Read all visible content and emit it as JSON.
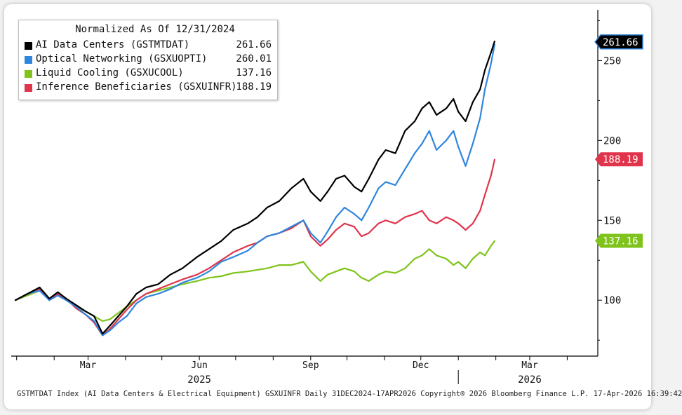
{
  "chart_data": {
    "type": "line",
    "title": "Normalized As Of 12/31/2024",
    "xlabel": "",
    "ylabel": "",
    "ylim": [
      65,
      280
    ],
    "x_range": [
      "2024-12-31",
      "2026-04-17"
    ],
    "y_ticks": [
      100,
      150,
      200,
      250
    ],
    "x_ticks": [
      {
        "label": "Mar",
        "date": "2025-03-01"
      },
      {
        "label": "Jun",
        "date": "2025-06-01"
      },
      {
        "label": "Sep",
        "date": "2025-09-01"
      },
      {
        "label": "Dec",
        "date": "2025-12-01"
      },
      {
        "label": "Mar",
        "date": "2026-03-01"
      }
    ],
    "year_labels": [
      {
        "label": "2025",
        "date": "2025-06-01"
      },
      {
        "label": "2026",
        "date": "2026-03-01"
      }
    ],
    "series": [
      {
        "name": "AI Data Centers (GSTMTDAT)",
        "last_label": "261.66",
        "color": "#000000",
        "points": [
          [
            0,
            100
          ],
          [
            10,
            104
          ],
          [
            20,
            108
          ],
          [
            28,
            101
          ],
          [
            35,
            105
          ],
          [
            42,
            101
          ],
          [
            50,
            97
          ],
          [
            58,
            93
          ],
          [
            65,
            90
          ],
          [
            72,
            79
          ],
          [
            78,
            84
          ],
          [
            85,
            90
          ],
          [
            92,
            96
          ],
          [
            100,
            104
          ],
          [
            108,
            108
          ],
          [
            118,
            110
          ],
          [
            128,
            116
          ],
          [
            138,
            120
          ],
          [
            150,
            127
          ],
          [
            160,
            132
          ],
          [
            170,
            137
          ],
          [
            180,
            144
          ],
          [
            192,
            148
          ],
          [
            200,
            152
          ],
          [
            208,
            158
          ],
          [
            218,
            162
          ],
          [
            228,
            170
          ],
          [
            238,
            176
          ],
          [
            244,
            168
          ],
          [
            252,
            162
          ],
          [
            258,
            168
          ],
          [
            265,
            176
          ],
          [
            272,
            178
          ],
          [
            280,
            171
          ],
          [
            286,
            168
          ],
          [
            292,
            176
          ],
          [
            300,
            188
          ],
          [
            306,
            194
          ],
          [
            314,
            192
          ],
          [
            322,
            206
          ],
          [
            330,
            212
          ],
          [
            336,
            220
          ],
          [
            342,
            224
          ],
          [
            348,
            216
          ],
          [
            356,
            220
          ],
          [
            362,
            226
          ],
          [
            366,
            218
          ],
          [
            372,
            212
          ],
          [
            378,
            224
          ],
          [
            384,
            232
          ],
          [
            388,
            244
          ],
          [
            393,
            255
          ],
          [
            396,
            262
          ]
        ]
      },
      {
        "name": "Optical Networking (GSXUOPTI)",
        "last_label": "260.01",
        "color": "#2e86de",
        "points": [
          [
            0,
            100
          ],
          [
            10,
            104
          ],
          [
            20,
            106
          ],
          [
            28,
            100
          ],
          [
            35,
            103
          ],
          [
            42,
            100
          ],
          [
            50,
            96
          ],
          [
            58,
            91
          ],
          [
            65,
            87
          ],
          [
            72,
            78
          ],
          [
            78,
            81
          ],
          [
            85,
            86
          ],
          [
            92,
            90
          ],
          [
            100,
            98
          ],
          [
            108,
            102
          ],
          [
            118,
            104
          ],
          [
            128,
            107
          ],
          [
            138,
            111
          ],
          [
            150,
            114
          ],
          [
            160,
            118
          ],
          [
            170,
            124
          ],
          [
            180,
            127
          ],
          [
            192,
            131
          ],
          [
            200,
            136
          ],
          [
            208,
            140
          ],
          [
            218,
            142
          ],
          [
            228,
            146
          ],
          [
            238,
            150
          ],
          [
            244,
            142
          ],
          [
            252,
            136
          ],
          [
            258,
            143
          ],
          [
            265,
            152
          ],
          [
            272,
            158
          ],
          [
            280,
            154
          ],
          [
            286,
            150
          ],
          [
            292,
            158
          ],
          [
            300,
            170
          ],
          [
            306,
            174
          ],
          [
            314,
            172
          ],
          [
            322,
            182
          ],
          [
            330,
            192
          ],
          [
            336,
            198
          ],
          [
            342,
            206
          ],
          [
            348,
            194
          ],
          [
            356,
            200
          ],
          [
            362,
            206
          ],
          [
            366,
            196
          ],
          [
            372,
            184
          ],
          [
            378,
            198
          ],
          [
            384,
            214
          ],
          [
            388,
            232
          ],
          [
            393,
            248
          ],
          [
            396,
            260
          ]
        ]
      },
      {
        "name": "Liquid Cooling (GSXUCOOL)",
        "last_label": "137.16",
        "color": "#7fc31c",
        "points": [
          [
            0,
            100
          ],
          [
            10,
            103
          ],
          [
            20,
            106
          ],
          [
            28,
            101
          ],
          [
            35,
            103
          ],
          [
            42,
            100
          ],
          [
            50,
            96
          ],
          [
            58,
            93
          ],
          [
            65,
            90
          ],
          [
            72,
            87
          ],
          [
            78,
            88
          ],
          [
            85,
            92
          ],
          [
            92,
            96
          ],
          [
            100,
            100
          ],
          [
            108,
            104
          ],
          [
            118,
            106
          ],
          [
            128,
            108
          ],
          [
            138,
            110
          ],
          [
            150,
            112
          ],
          [
            160,
            114
          ],
          [
            170,
            115
          ],
          [
            180,
            117
          ],
          [
            192,
            118
          ],
          [
            200,
            119
          ],
          [
            208,
            120
          ],
          [
            218,
            122
          ],
          [
            228,
            122
          ],
          [
            238,
            124
          ],
          [
            244,
            118
          ],
          [
            252,
            112
          ],
          [
            258,
            116
          ],
          [
            265,
            118
          ],
          [
            272,
            120
          ],
          [
            280,
            118
          ],
          [
            286,
            114
          ],
          [
            292,
            112
          ],
          [
            300,
            116
          ],
          [
            306,
            118
          ],
          [
            314,
            117
          ],
          [
            322,
            120
          ],
          [
            330,
            126
          ],
          [
            336,
            128
          ],
          [
            342,
            132
          ],
          [
            348,
            128
          ],
          [
            356,
            126
          ],
          [
            362,
            122
          ],
          [
            366,
            124
          ],
          [
            372,
            120
          ],
          [
            378,
            126
          ],
          [
            384,
            130
          ],
          [
            388,
            128
          ],
          [
            393,
            134
          ],
          [
            396,
            137
          ]
        ]
      },
      {
        "name": "Inference Beneficiaries (GSXUINFR)",
        "last_label": "188.19",
        "color": "#e0344c",
        "points": [
          [
            0,
            100
          ],
          [
            10,
            104
          ],
          [
            20,
            107
          ],
          [
            28,
            100
          ],
          [
            35,
            104
          ],
          [
            42,
            101
          ],
          [
            50,
            95
          ],
          [
            58,
            91
          ],
          [
            65,
            86
          ],
          [
            72,
            78
          ],
          [
            78,
            82
          ],
          [
            85,
            88
          ],
          [
            92,
            94
          ],
          [
            100,
            100
          ],
          [
            108,
            104
          ],
          [
            118,
            107
          ],
          [
            128,
            110
          ],
          [
            138,
            113
          ],
          [
            150,
            116
          ],
          [
            160,
            120
          ],
          [
            170,
            125
          ],
          [
            180,
            130
          ],
          [
            192,
            134
          ],
          [
            200,
            136
          ],
          [
            208,
            140
          ],
          [
            218,
            142
          ],
          [
            228,
            145
          ],
          [
            238,
            150
          ],
          [
            244,
            140
          ],
          [
            252,
            134
          ],
          [
            258,
            138
          ],
          [
            265,
            144
          ],
          [
            272,
            148
          ],
          [
            280,
            146
          ],
          [
            286,
            140
          ],
          [
            292,
            142
          ],
          [
            300,
            148
          ],
          [
            306,
            150
          ],
          [
            314,
            148
          ],
          [
            322,
            152
          ],
          [
            330,
            154
          ],
          [
            336,
            156
          ],
          [
            342,
            150
          ],
          [
            348,
            148
          ],
          [
            356,
            152
          ],
          [
            362,
            150
          ],
          [
            366,
            148
          ],
          [
            372,
            144
          ],
          [
            378,
            148
          ],
          [
            384,
            156
          ],
          [
            388,
            166
          ],
          [
            393,
            178
          ],
          [
            396,
            188
          ]
        ]
      }
    ]
  },
  "footer_text": "GSTMTDAT Index (AI Data Centers & Electrical Equipment) GSXUINFR Daily 31DEC2024-17APR2026  Copyright® 2026 Bloomberg Finance L.P.  17-Apr-2026 16:39:42"
}
